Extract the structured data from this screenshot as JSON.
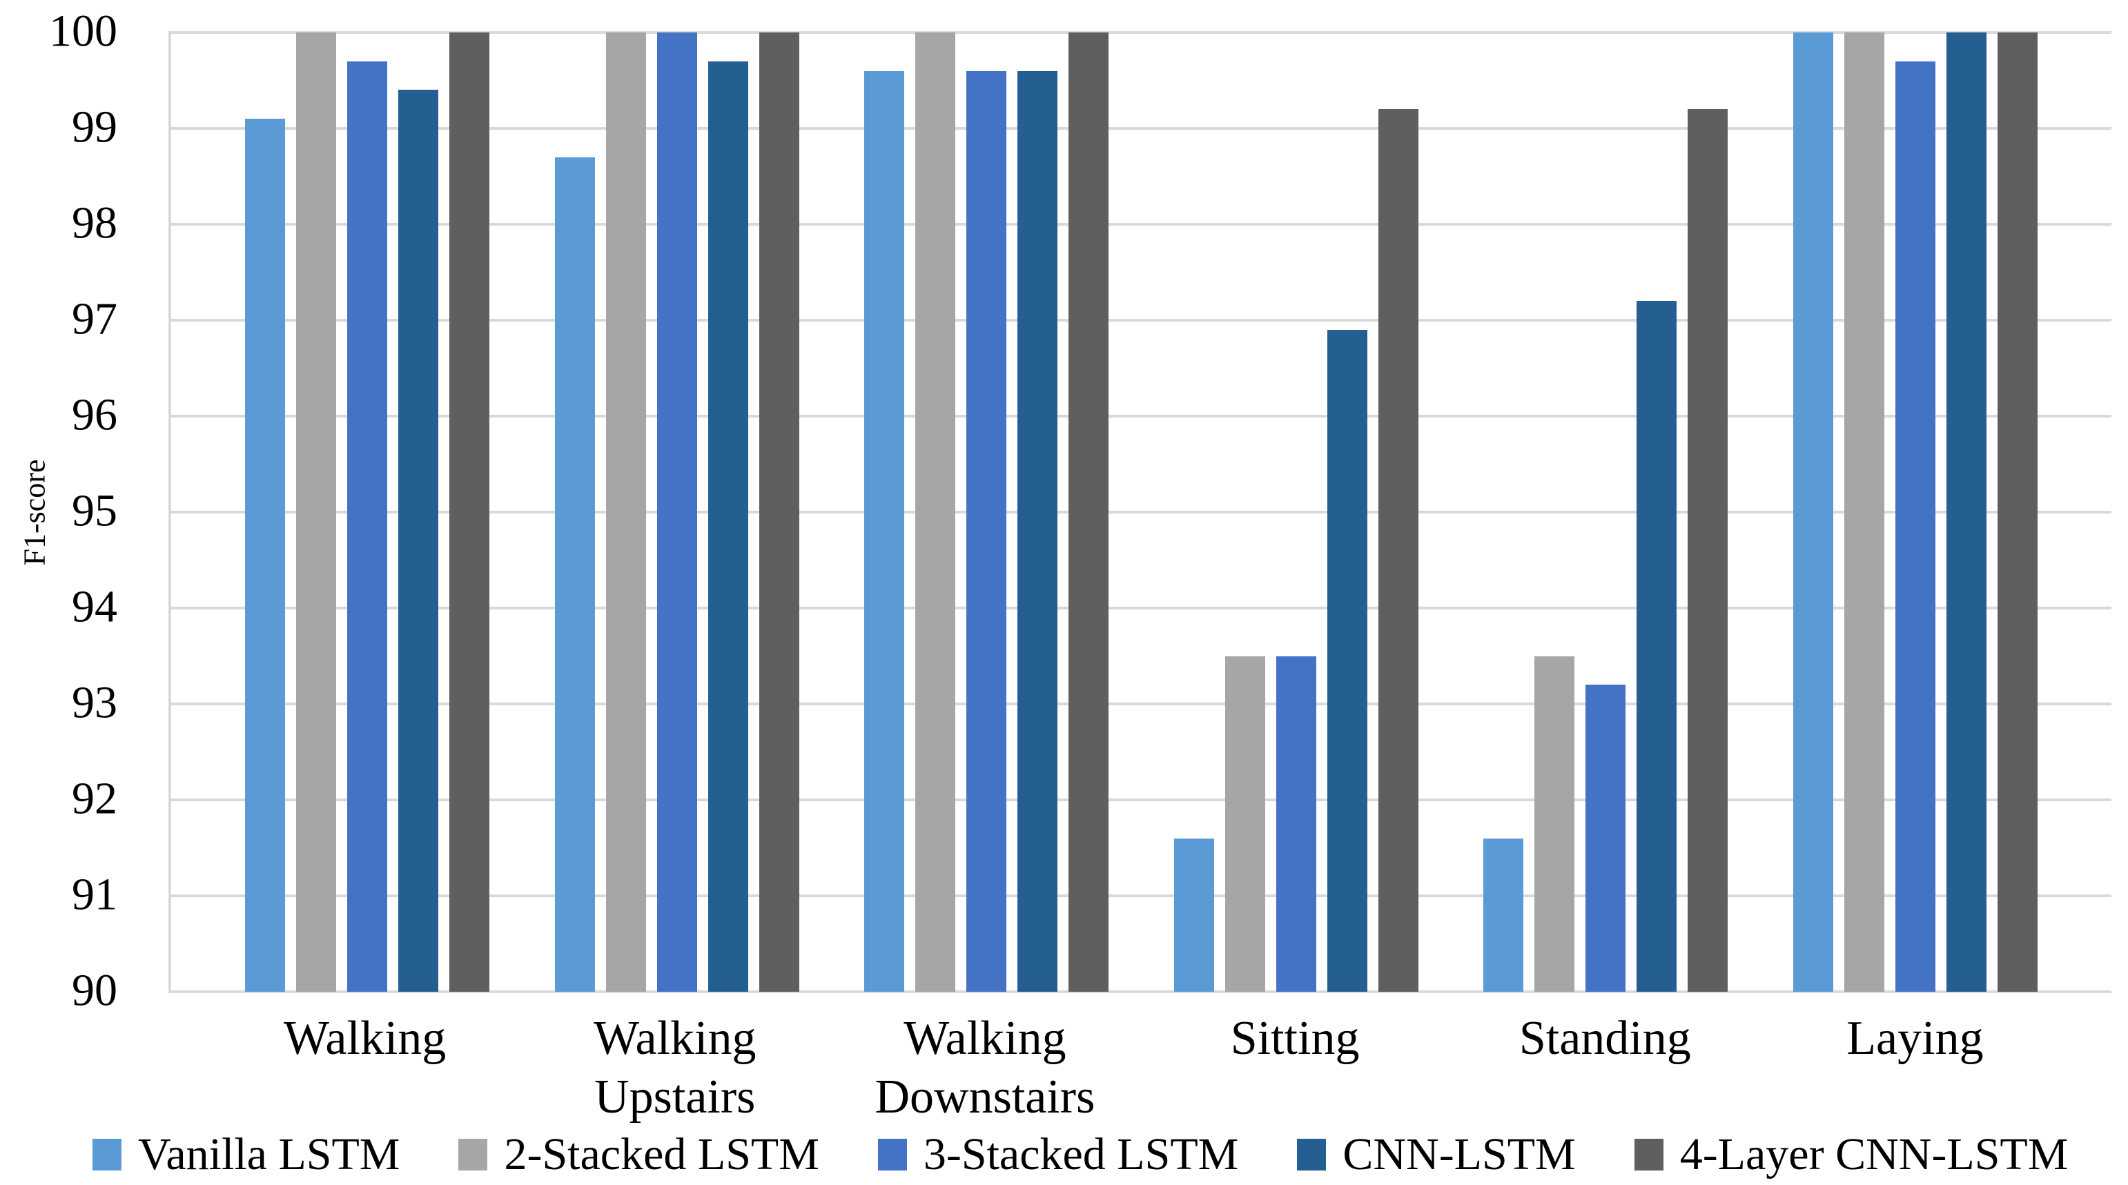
{
  "chart_data": {
    "type": "bar",
    "title": "",
    "xlabel": "",
    "ylabel": "F1-score",
    "ylim": [
      90,
      100
    ],
    "yticks": [
      100,
      99,
      98,
      97,
      96,
      95,
      94,
      93,
      92,
      91,
      90
    ],
    "grid": true,
    "legend_position": "bottom",
    "categories": [
      "Walking",
      "Walking Upstairs",
      "Walking Downstairs",
      "Sitting",
      "Standing",
      "Laying"
    ],
    "series": [
      {
        "name": "Vanilla LSTM",
        "color": "#5B9BD5",
        "values": [
          99.1,
          98.7,
          99.6,
          91.6,
          91.6,
          100
        ]
      },
      {
        "name": "2-Stacked LSTM",
        "color": "#A6A6A6",
        "values": [
          100,
          100,
          100,
          93.5,
          93.5,
          100
        ]
      },
      {
        "name": "3-Stacked LSTM",
        "color": "#4472C4",
        "values": [
          99.7,
          100,
          99.6,
          93.5,
          93.2,
          99.7
        ]
      },
      {
        "name": "CNN-LSTM",
        "color": "#255E91",
        "values": [
          99.4,
          99.7,
          99.6,
          96.9,
          97.2,
          100
        ]
      },
      {
        "name": "4-Layer CNN-LSTM",
        "color": "#5F5F5F",
        "values": [
          100,
          100,
          100,
          99.2,
          99.2,
          100
        ]
      }
    ],
    "colors": {
      "gridline": "#D9D9D9",
      "background": "#FFFFFF",
      "text": "#000000"
    }
  }
}
